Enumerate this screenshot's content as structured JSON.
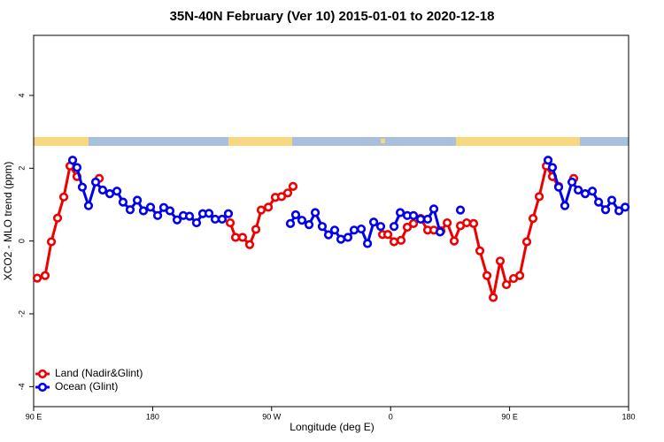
{
  "chart_data": {
    "type": "line",
    "title": "35N-40N February (Ver 10)   2015-01-01 to 2020-12-18",
    "xlabel": "Longitude (deg E)",
    "ylabel": "XCO2 - MLO trend (ppm)",
    "xlim": [
      90,
      540
    ],
    "ylim": [
      -4.55,
      5.65
    ],
    "xticks": [
      {
        "value": 90,
        "label": "90 E"
      },
      180,
      {
        "value": 270,
        "label": "90 W"
      },
      {
        "value": 360,
        "label": "0"
      },
      {
        "value": 450,
        "label": "90 E"
      },
      {
        "value": 540,
        "label": "180"
      }
    ],
    "yticks": [
      -4,
      -2,
      0,
      2,
      4
    ],
    "legend": "bottom-left",
    "series": [
      {
        "name": "Land (Nadir&Glint)",
        "color": "#ee0000",
        "x": [
          92.7,
          98.7,
          103.4,
          108.1,
          112.8,
          117.5,
          122.8,
          null,
          139.6,
          null,
          238.7,
          242.7,
          248.0,
          253.4,
          258.1,
          262.1,
          267.5,
          272.8,
          277.5,
          282.2,
          286.2,
          null,
          353.9,
          357.9,
          362.6,
          367.9,
          372.6,
          377.3,
          382.7,
          388.0,
          392.7,
          398.1,
          402.8,
          408.1,
          412.8,
          417.5,
          422.8,
          427.5,
          432.9,
          437.6,
          442.9,
          447.6,
          453.0,
          457.7,
          463.0,
          467.7,
          472.4,
          477.8,
          482.4,
          487.1,
          null,
          498.5
        ],
        "values": [
          -1.02,
          -0.95,
          -0.02,
          0.63,
          1.21,
          2.06,
          1.77,
          null,
          1.72,
          null,
          0.5,
          0.1,
          0.1,
          -0.1,
          0.32,
          0.85,
          0.93,
          1.2,
          1.22,
          1.32,
          1.5,
          null,
          0.18,
          0.18,
          -0.02,
          0.02,
          0.38,
          0.48,
          0.62,
          0.3,
          0.3,
          0.28,
          0.5,
          0.0,
          0.42,
          0.5,
          0.48,
          -0.27,
          -0.95,
          -1.55,
          -0.55,
          -1.2,
          -1.03,
          -0.95,
          -0.02,
          0.62,
          1.22,
          2.06,
          1.77,
          1.5,
          null,
          1.72
        ]
      },
      {
        "name": "Ocean (Glint)",
        "color": "#0000ee",
        "x": [
          119.5,
          122.8,
          126.8,
          131.5,
          136.9,
          142.2,
          147.6,
          153.0,
          157.6,
          163.0,
          168.4,
          173.0,
          178.4,
          183.8,
          188.4,
          193.1,
          198.5,
          203.2,
          207.9,
          213.2,
          217.9,
          222.6,
          227.3,
          232.6,
          237.3,
          null,
          284.2,
          288.2,
          292.9,
          298.3,
          303.0,
          308.3,
          313.0,
          317.7,
          322.4,
          327.7,
          332.4,
          337.8,
          342.5,
          347.2,
          352.5,
          null,
          362.6,
          367.3,
          372.6,
          377.3,
          382.7,
          388.0,
          392.7,
          397.4,
          null,
          412.8,
          null,
          479.1,
          482.4,
          487.1,
          491.8,
          497.2,
          501.9,
          507.2,
          512.6,
          517.3,
          522.6,
          527.3,
          532.7,
          537.4
        ],
        "values": [
          2.22,
          2.02,
          1.48,
          0.97,
          1.62,
          1.4,
          1.3,
          1.37,
          1.07,
          0.86,
          1.12,
          0.83,
          0.93,
          0.7,
          0.92,
          0.83,
          0.58,
          0.7,
          0.68,
          0.5,
          0.75,
          0.76,
          0.6,
          0.6,
          0.75,
          null,
          0.48,
          0.72,
          0.57,
          0.45,
          0.78,
          0.4,
          0.17,
          0.3,
          0.05,
          0.1,
          0.3,
          0.33,
          -0.07,
          0.52,
          0.4,
          null,
          0.4,
          0.78,
          0.7,
          0.7,
          0.6,
          0.6,
          0.88,
          0.25,
          null,
          0.85,
          null,
          2.22,
          2.02,
          1.48,
          0.97,
          1.62,
          1.4,
          1.3,
          1.37,
          1.07,
          0.86,
          1.12,
          0.83,
          0.93
        ]
      }
    ]
  }
}
